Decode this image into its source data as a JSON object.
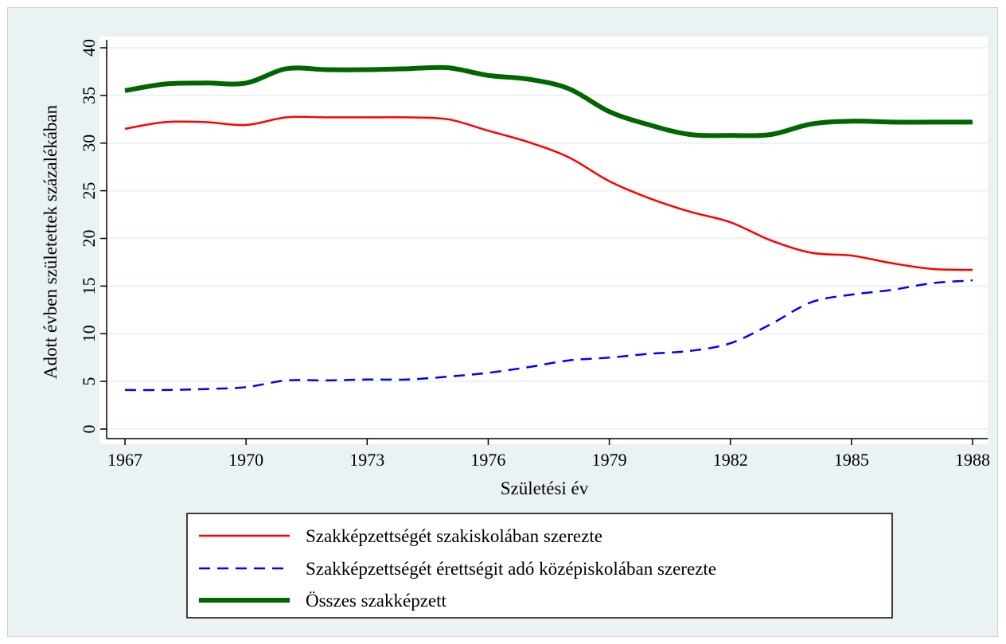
{
  "chart_data": {
    "type": "line",
    "title": "",
    "xlabel": "Születési év",
    "ylabel": "Adott évben születettek százalékában",
    "xlim": [
      1967,
      1988
    ],
    "ylim": [
      0,
      40
    ],
    "x_ticks": [
      "1967",
      "1970",
      "1973",
      "1976",
      "1979",
      "1982",
      "1985",
      "1988"
    ],
    "y_ticks": [
      "0",
      "5",
      "10",
      "15",
      "20",
      "25",
      "30",
      "35",
      "40"
    ],
    "grid": "horizontal",
    "legend_position": "bottom",
    "x": [
      1967,
      1968,
      1969,
      1970,
      1971,
      1972,
      1973,
      1974,
      1975,
      1976,
      1977,
      1978,
      1979,
      1980,
      1981,
      1982,
      1983,
      1984,
      1985,
      1986,
      1987,
      1988
    ],
    "series": [
      {
        "name": "Szakképzettségét szakiskolában szerezte",
        "color": "#ff0000",
        "style": "solid",
        "values": [
          31.5,
          32.2,
          32.2,
          31.9,
          32.7,
          32.7,
          32.7,
          32.7,
          32.5,
          31.3,
          30.1,
          28.5,
          26.0,
          24.2,
          22.8,
          21.7,
          19.8,
          18.5,
          18.2,
          17.4,
          16.8,
          16.7
        ]
      },
      {
        "name": "Szakképzettségét érettségit adó középiskolában szerezte",
        "color": "#0000ff",
        "style": "dashed",
        "values": [
          4.1,
          4.1,
          4.2,
          4.4,
          5.1,
          5.1,
          5.2,
          5.2,
          5.5,
          5.9,
          6.5,
          7.2,
          7.5,
          7.9,
          8.2,
          9.0,
          11.0,
          13.3,
          14.1,
          14.6,
          15.3,
          15.6
        ]
      },
      {
        "name": "Összes szakképzett",
        "color": "#006600",
        "style": "thick",
        "values": [
          35.5,
          36.2,
          36.3,
          36.3,
          37.8,
          37.7,
          37.7,
          37.8,
          37.9,
          37.1,
          36.7,
          35.7,
          33.3,
          31.9,
          30.9,
          30.8,
          30.9,
          32.0,
          32.3,
          32.2,
          32.2,
          32.2
        ]
      }
    ]
  }
}
